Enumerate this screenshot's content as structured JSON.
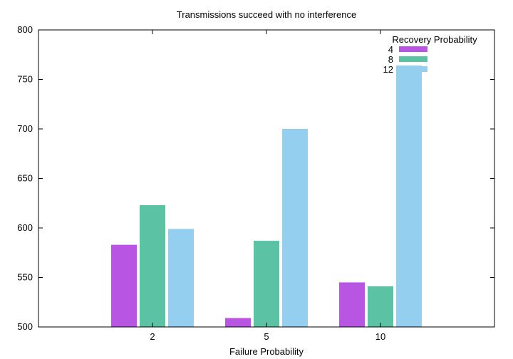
{
  "chart_data": {
    "type": "bar",
    "title": "Transmissions succeed with no interference",
    "xlabel": "Failure Probability",
    "ylabel": "",
    "categories": [
      "2",
      "5",
      "10"
    ],
    "ylim": [
      500,
      800
    ],
    "yticks": [
      500,
      550,
      600,
      650,
      700,
      750,
      800
    ],
    "legend": {
      "title": "Recovery Probability",
      "placement": "top-right"
    },
    "series": [
      {
        "name": "4",
        "color": "#b856e3",
        "values": [
          583,
          509,
          545
        ]
      },
      {
        "name": "8",
        "color": "#5bc2a4",
        "values": [
          623,
          587,
          541
        ]
      },
      {
        "name": "12",
        "color": "#94cff0",
        "values": [
          599,
          700,
          764
        ]
      }
    ],
    "grid": false
  }
}
